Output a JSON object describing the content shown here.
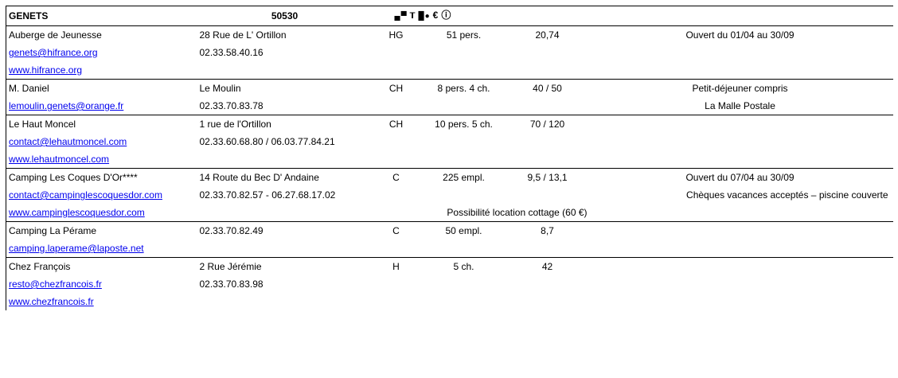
{
  "header": {
    "town": "GENETS",
    "postcode": "50530",
    "icons": [
      "hotel-bed-icon",
      "cocktail-icon",
      "restaurant-icon",
      "euro-icon",
      "info-icon"
    ],
    "icon_glyphs": [
      "🛏",
      "Ÿ",
      "█●",
      "€",
      "ⓘ"
    ]
  },
  "entries": [
    {
      "name": "Auberge de Jeunesse",
      "address": "28 Rue de L' Ortillon",
      "type": "HG",
      "capacity": "51 pers.",
      "price": "20,74",
      "note": "Ouvert du 01/04 au 30/09",
      "email": "genets@hifrance.org",
      "phone": "02.33.58.40.16",
      "website": "www.hifrance.org"
    },
    {
      "name": "M. Daniel",
      "address": "Le Moulin",
      "type": "CH",
      "capacity": "8 pers. 4 ch.",
      "price": "40 / 50",
      "note": "Petit-déjeuner compris",
      "email": "lemoulin.genets@orange.fr",
      "phone": "02.33.70.83.78",
      "note2": "La Malle Postale"
    },
    {
      "name": "Le Haut Moncel",
      "address": "1 rue de l'Ortillon",
      "type": "CH",
      "capacity": "10 pers. 5 ch.",
      "price": "70 / 120",
      "email": "contact@lehautmoncel.com",
      "phone": "02.33.60.68.80 / 06.03.77.84.21",
      "website": "www.lehautmoncel.com"
    },
    {
      "name": "Camping Les Coques D'Or****",
      "address": "14 Route du Bec D' Andaine",
      "type": "C",
      "capacity": "225 empl.",
      "price": "9,5 / 13,1",
      "note": "Ouvert du 07/04 au 30/09",
      "email": "contact@campinglescoquesdor.com",
      "phone": "02.33.70.82.57 - 06.27.68.17.02",
      "note2": "Chèques vacances acceptés – piscine couverte",
      "website": "www.campinglescoquesdor.com",
      "note3": "Possibilité location cottage (60 €)"
    },
    {
      "name": "Camping La Pérame",
      "address": "02.33.70.82.49",
      "type": "C",
      "capacity": "50 empl.",
      "price": "8,7",
      "email": "camping.laperame@laposte.net"
    },
    {
      "name": "Chez François",
      "address": "2 Rue Jérémie",
      "type": "H",
      "capacity": "5 ch.",
      "price": "42",
      "email": "resto@chezfrancois.fr",
      "phone": "02.33.70.83.98",
      "website": "www.chezfrancois.fr"
    }
  ]
}
